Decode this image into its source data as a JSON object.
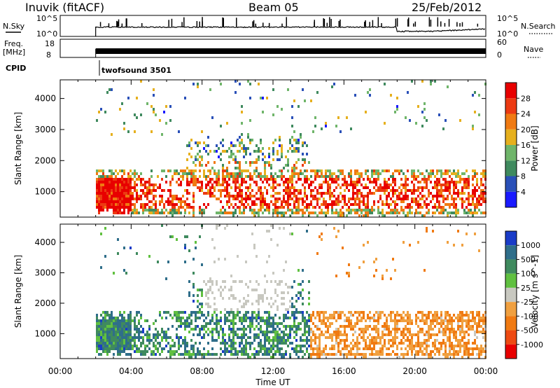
{
  "header": {
    "station": "Inuvik (fitACF)",
    "beam": "Beam 05",
    "date": "25/Feb/2012"
  },
  "strips": {
    "nsky": {
      "label": "N.Sky",
      "tick_top": "10^5",
      "tick_bottom": "10^0"
    },
    "freq": {
      "label_line1": "Freq.",
      "label_line2": "[MHz]",
      "tick_top": "18",
      "tick_bottom": "8"
    },
    "cpid": {
      "label": "CPID",
      "value": "twofsound 3501"
    },
    "nsearch": {
      "label": "N.Search",
      "tick_top": "10^5",
      "tick_bottom": "10^0"
    },
    "nave": {
      "label": "Nave",
      "tick_top": "60",
      "tick_bottom": "0"
    }
  },
  "chart_data": [
    {
      "type": "heatmap",
      "title": "",
      "ylabel": "Slant Range [km]",
      "xlabel": "",
      "x_range_hours": [
        0,
        24
      ],
      "ylim": [
        180,
        4600
      ],
      "yticks": [
        1000,
        2000,
        3000,
        4000
      ],
      "data_start_hour": 2,
      "colorbar": {
        "label": "Power [dB]",
        "ticks": [
          "4",
          "8",
          "12",
          "16",
          "20",
          "24",
          "28"
        ],
        "colors": [
          "#1a1aff",
          "#2a50b8",
          "#3f8a5e",
          "#6fb56a",
          "#e6b01e",
          "#f07a12",
          "#ec3a12",
          "#e80000"
        ]
      }
    },
    {
      "type": "heatmap",
      "title": "",
      "ylabel": "Slant Range [km]",
      "xlabel": "Time UT",
      "x_range_hours": [
        0,
        24
      ],
      "xticks": [
        "00:00",
        "04:00",
        "08:00",
        "12:00",
        "16:00",
        "20:00",
        "00:00"
      ],
      "ylim": [
        180,
        4600
      ],
      "yticks": [
        1000,
        2000,
        3000,
        4000
      ],
      "data_start_hour": 2,
      "colorbar": {
        "label": "Velocity [m s^-1]",
        "ticks": [
          "1000",
          "500",
          "100",
          "25",
          "-25",
          "-100",
          "-500",
          "-1000"
        ],
        "colors": [
          "#1a3cc8",
          "#2f6e8a",
          "#3f8a5e",
          "#60c040",
          "#c8c8c0",
          "#f0a040",
          "#f07a12",
          "#ee4a12",
          "#e80000"
        ]
      }
    }
  ]
}
